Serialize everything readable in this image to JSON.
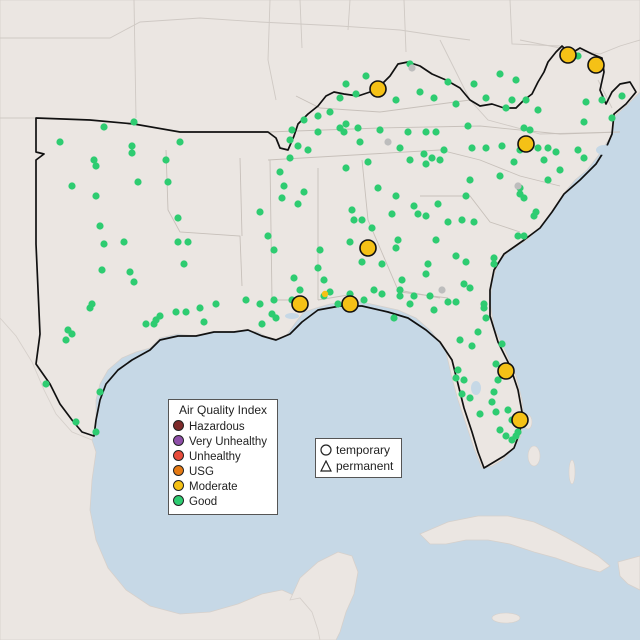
{
  "legend": {
    "title": "Air Quality Index",
    "items": [
      {
        "label": "Hazardous",
        "color": "#7e2b2b"
      },
      {
        "label": "Very Unhealthy",
        "color": "#8e4fa8"
      },
      {
        "label": "Unhealthy",
        "color": "#e84c3c"
      },
      {
        "label": "USG",
        "color": "#e57a14"
      },
      {
        "label": "Moderate",
        "color": "#f5c116"
      },
      {
        "label": "Good",
        "color": "#2ecc71"
      }
    ]
  },
  "monitor_types": {
    "temporary": "temporary",
    "permanent": "permanent"
  },
  "colors": {
    "ocean": "#c6d8e6",
    "land": "#ebe6e2",
    "no_data": "#bdbdbd"
  }
}
